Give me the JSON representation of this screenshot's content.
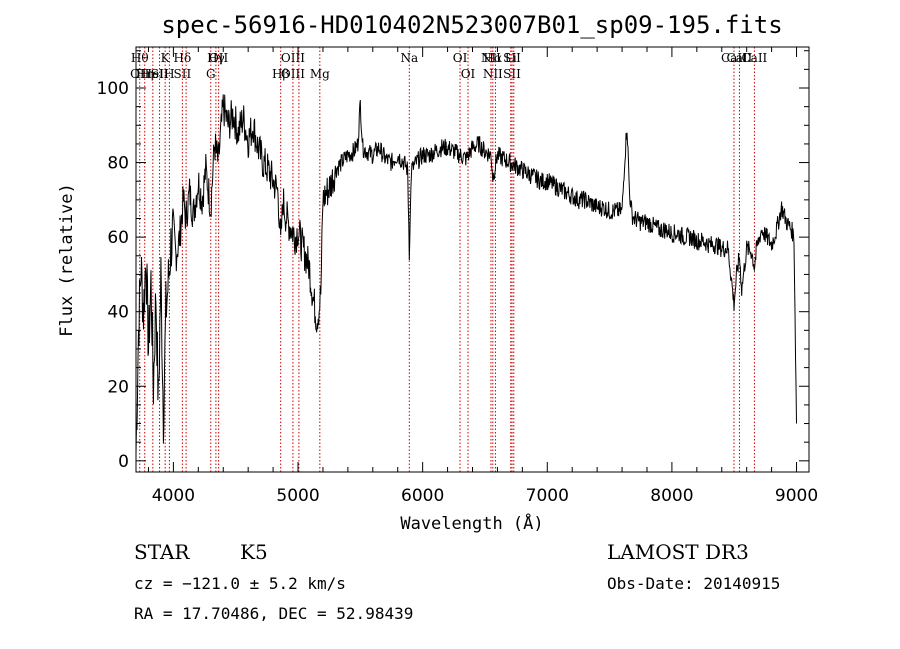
{
  "chart_data": {
    "type": "line",
    "title": "spec-56916-HD010402N523007B01_sp09-195.fits",
    "xlabel": "Wavelength (Å)",
    "ylabel": "Flux (relative)",
    "xlim": [
      3700,
      9100
    ],
    "ylim": [
      -3,
      111
    ],
    "xticks": [
      4000,
      5000,
      6000,
      7000,
      8000,
      9000
    ],
    "yticks": [
      0,
      20,
      40,
      60,
      80,
      100
    ],
    "line_color": "#000000",
    "marker_color": "#cc0000",
    "series": [
      {
        "name": "spectrum",
        "x": [
          3700,
          3720,
          3740,
          3760,
          3780,
          3800,
          3820,
          3840,
          3860,
          3880,
          3900,
          3920,
          3940,
          3960,
          3980,
          4000,
          4020,
          4050,
          4080,
          4100,
          4130,
          4160,
          4200,
          4230,
          4260,
          4300,
          4330,
          4360,
          4400,
          4440,
          4480,
          4520,
          4560,
          4600,
          4640,
          4680,
          4720,
          4760,
          4800,
          4840,
          4861,
          4880,
          4900,
          4920,
          4950,
          4980,
          5000,
          5030,
          5060,
          5090,
          5120,
          5150,
          5170,
          5183,
          5200,
          5230,
          5260,
          5300,
          5350,
          5400,
          5450,
          5480,
          5500,
          5520,
          5550,
          5600,
          5650,
          5700,
          5750,
          5800,
          5850,
          5880,
          5893,
          5910,
          5950,
          6000,
          6050,
          6100,
          6150,
          6200,
          6250,
          6300,
          6350,
          6400,
          6450,
          6500,
          6550,
          6563,
          6600,
          6650,
          6700,
          6750,
          6800,
          6850,
          6900,
          6950,
          7000,
          7050,
          7100,
          7150,
          7200,
          7250,
          7300,
          7350,
          7400,
          7450,
          7500,
          7550,
          7600,
          7620,
          7640,
          7660,
          7680,
          7700,
          7750,
          7800,
          7850,
          7900,
          7950,
          8000,
          8050,
          8100,
          8150,
          8200,
          8250,
          8300,
          8350,
          8400,
          8450,
          8480,
          8498,
          8520,
          8542,
          8560,
          8600,
          8640,
          8662,
          8680,
          8720,
          8760,
          8800,
          8840,
          8880,
          8920,
          8960,
          8980,
          9000
        ],
        "values": [
          2,
          35,
          52,
          40,
          55,
          30,
          48,
          20,
          45,
          15,
          50,
          12,
          40,
          48,
          58,
          62,
          55,
          60,
          70,
          65,
          72,
          66,
          75,
          70,
          78,
          68,
          85,
          80,
          95,
          90,
          93,
          88,
          92,
          86,
          90,
          84,
          80,
          78,
          75,
          72,
          58,
          70,
          66,
          64,
          62,
          60,
          62,
          58,
          55,
          52,
          44,
          38,
          41,
          45,
          70,
          72,
          74,
          78,
          80,
          82,
          83,
          85,
          96,
          84,
          83,
          82,
          84,
          81,
          80,
          82,
          80,
          78,
          56,
          78,
          80,
          82,
          82,
          83,
          84,
          84,
          83,
          82,
          81,
          84,
          85,
          83,
          82,
          76,
          82,
          81,
          80,
          79,
          78,
          77,
          76,
          75,
          75,
          74,
          73,
          72,
          71,
          70,
          70,
          69,
          68,
          68,
          67,
          67,
          67,
          80,
          90,
          72,
          66,
          65,
          64,
          64,
          63,
          62,
          62,
          61,
          61,
          60,
          60,
          59,
          59,
          58,
          58,
          57,
          57,
          48,
          42,
          50,
          55,
          46,
          57,
          56,
          52,
          57,
          62,
          60,
          58,
          62,
          68,
          64,
          62,
          60,
          10
        ]
      }
    ],
    "line_markers": [
      {
        "wl": 3730,
        "upper": "Hθ",
        "lower": "OII"
      },
      {
        "wl": 3770,
        "upper": "",
        "lower": "Hη"
      },
      {
        "wl": 3835,
        "upper": "",
        "lower": "HeI"
      },
      {
        "wl": 3889,
        "upper": "",
        "lower": "SII"
      },
      {
        "wl": 3934,
        "upper": "K",
        "lower": ""
      },
      {
        "wl": 3968,
        "upper": "",
        "lower": "H"
      },
      {
        "wl": 4072,
        "upper": "Hδ",
        "lower": "SII"
      },
      {
        "wl": 4102,
        "upper": "",
        "lower": ""
      },
      {
        "wl": 4300,
        "upper": "",
        "lower": "G"
      },
      {
        "wl": 4341,
        "upper": "Hγ",
        "lower": ""
      },
      {
        "wl": 4363,
        "upper": "OII",
        "lower": ""
      },
      {
        "wl": 4861,
        "upper": "",
        "lower": "Hβ"
      },
      {
        "wl": 4959,
        "upper": "OIII",
        "lower": "OIII"
      },
      {
        "wl": 5007,
        "upper": "",
        "lower": ""
      },
      {
        "wl": 5175,
        "upper": "",
        "lower": "Mg"
      },
      {
        "wl": 5893,
        "upper": "Na",
        "lower": ""
      },
      {
        "wl": 6300,
        "upper": "OI",
        "lower": ""
      },
      {
        "wl": 6364,
        "upper": "",
        "lower": "OI"
      },
      {
        "wl": 6548,
        "upper": "NII",
        "lower": ""
      },
      {
        "wl": 6563,
        "upper": "Hα",
        "lower": "NII"
      },
      {
        "wl": 6584,
        "upper": "",
        "lower": ""
      },
      {
        "wl": 6707,
        "upper": "Li",
        "lower": ""
      },
      {
        "wl": 6717,
        "upper": "SII",
        "lower": "SII"
      },
      {
        "wl": 6731,
        "upper": "",
        "lower": ""
      },
      {
        "wl": 8498,
        "upper": "CaII",
        "lower": ""
      },
      {
        "wl": 8542,
        "upper": "CaII",
        "lower": ""
      },
      {
        "wl": 8662,
        "upper": "CaII",
        "lower": ""
      }
    ]
  },
  "footer": {
    "object_type": "STAR",
    "subclass": "K5",
    "survey": "LAMOST DR3",
    "cz": "cz = −121.0 ± 5.2 km/s",
    "obs_date": "Obs-Date: 20140915",
    "coords": "RA =  17.70486, DEC =  52.98439"
  }
}
